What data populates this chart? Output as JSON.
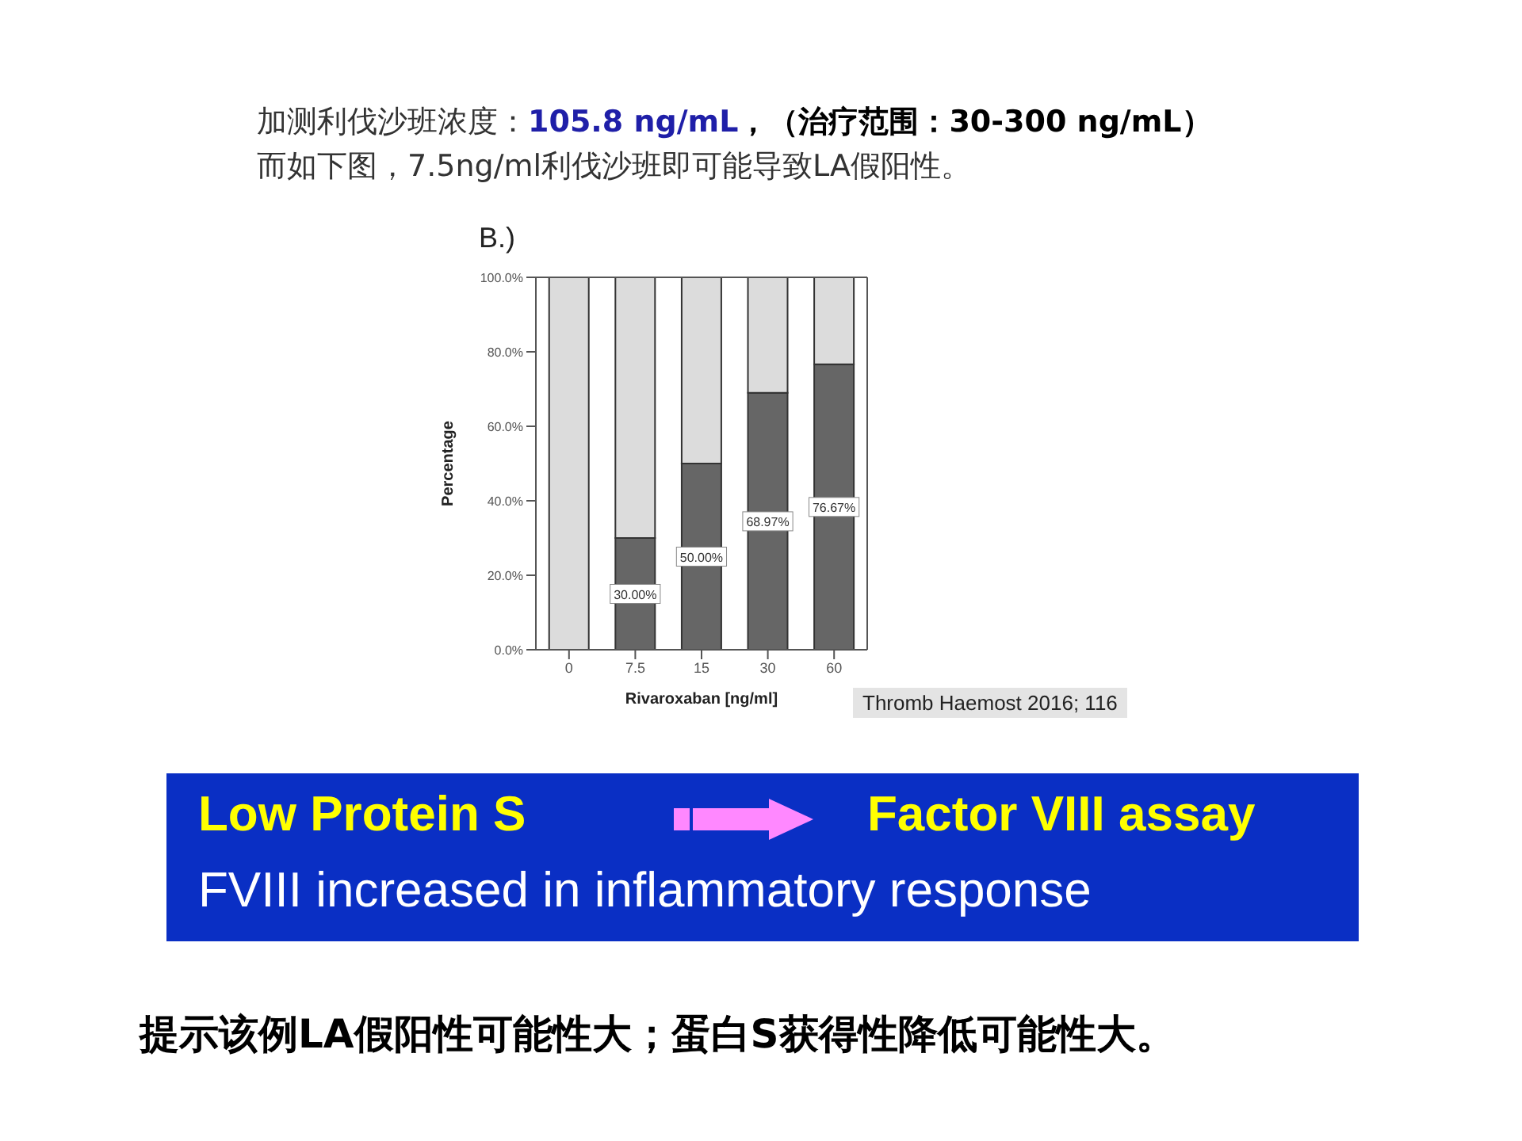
{
  "chart_data": {
    "type": "bar",
    "title": "B.)",
    "xlabel": "Rivaroxaban [ng/ml]",
    "ylabel": "Percentage",
    "categories": [
      "0",
      "7.5",
      "15",
      "30",
      "60"
    ],
    "stacked": true,
    "series": [
      {
        "color": "#666666",
        "values": [
          0,
          30,
          50,
          68.97,
          76.67
        ],
        "value_labels": [
          null,
          "30.00%",
          "50.00%",
          "68.97%",
          "76.67%"
        ]
      },
      {
        "color": "#dcdcdc",
        "values": [
          100,
          70,
          50,
          31.03,
          23.33
        ]
      }
    ],
    "ylim": [
      0,
      100
    ],
    "yticks": [
      {
        "value": 0,
        "label": "0.0%"
      },
      {
        "value": 20,
        "label": "20.0%"
      },
      {
        "value": 40,
        "label": "40.0%"
      },
      {
        "value": 60,
        "label": "60.0%"
      },
      {
        "value": 80,
        "label": "80.0%"
      },
      {
        "value": 100,
        "label": "100.0%"
      }
    ],
    "grid": false,
    "legend": false,
    "annotations": [
      "加测利伐沙班浓度：",
      "105.8 ng/mL",
      "，（治疗范围：30-300 ng/mL）",
      "而如下图，7.5ng/ml利伐沙班即可能导致LA假阳性。",
      "Thromb Haemost 2016; 116",
      "Low Protein S",
      "Factor VIII assay",
      "FVIII increased in inflammatory response",
      "提示该例LA假阳性可能性大；蛋白S获得性降低可能性大。"
    ]
  }
}
